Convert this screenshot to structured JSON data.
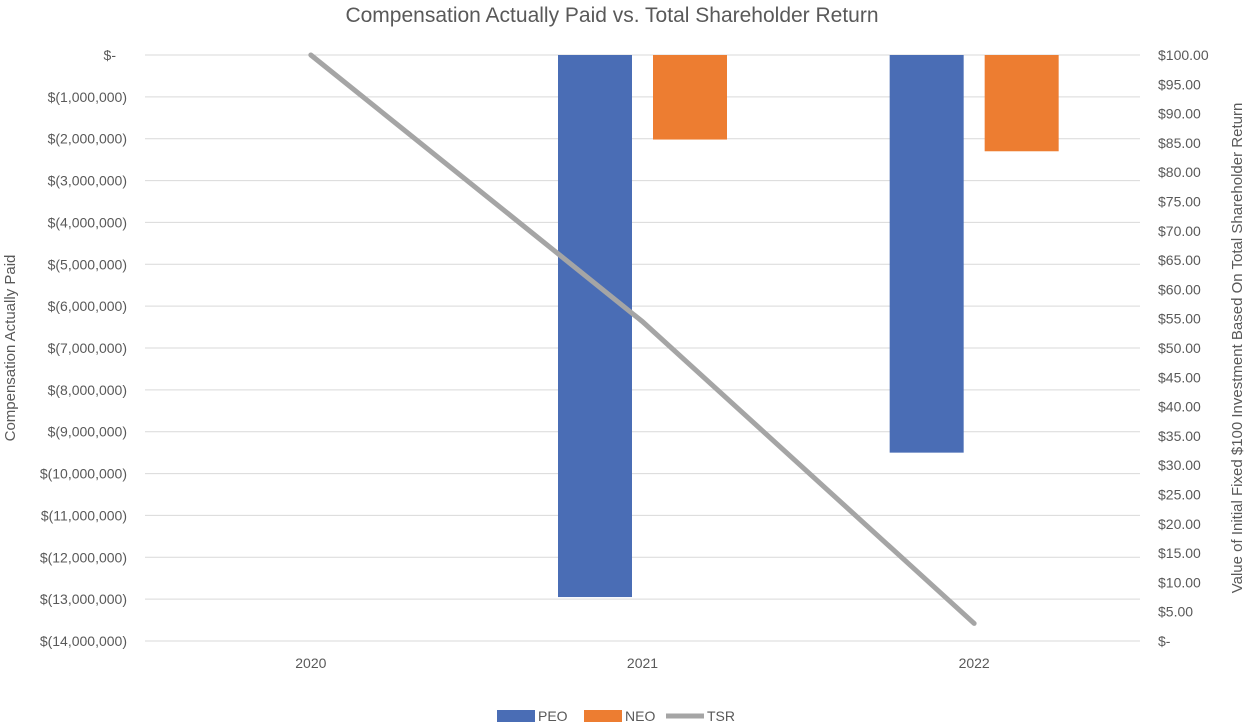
{
  "chart_data": {
    "type": "bar",
    "title": "Compensation Actually Paid vs. Total Shareholder Return",
    "categories": [
      "2020",
      "2021",
      "2022"
    ],
    "ylabel": "Compensation Actually Paid",
    "y2label": "Value of Initial Fixed $100 Investment Based On Total Shareholder Return",
    "ylim": [
      -14000000,
      0
    ],
    "y2lim": [
      0,
      100
    ],
    "y_ticks": [
      {
        "value": 0,
        "label": "$-"
      },
      {
        "value": -1000000,
        "label": "$(1,000,000)"
      },
      {
        "value": -2000000,
        "label": "$(2,000,000)"
      },
      {
        "value": -3000000,
        "label": "$(3,000,000)"
      },
      {
        "value": -4000000,
        "label": "$(4,000,000)"
      },
      {
        "value": -5000000,
        "label": "$(5,000,000)"
      },
      {
        "value": -6000000,
        "label": "$(6,000,000)"
      },
      {
        "value": -7000000,
        "label": "$(7,000,000)"
      },
      {
        "value": -8000000,
        "label": "$(8,000,000)"
      },
      {
        "value": -9000000,
        "label": "$(9,000,000)"
      },
      {
        "value": -10000000,
        "label": "$(10,000,000)"
      },
      {
        "value": -11000000,
        "label": "$(11,000,000)"
      },
      {
        "value": -12000000,
        "label": "$(12,000,000)"
      },
      {
        "value": -13000000,
        "label": "$(13,000,000)"
      },
      {
        "value": -14000000,
        "label": "$(14,000,000)"
      }
    ],
    "y2_ticks": [
      {
        "value": 100,
        "label": "$100.00"
      },
      {
        "value": 95,
        "label": "$95.00"
      },
      {
        "value": 90,
        "label": "$90.00"
      },
      {
        "value": 85,
        "label": "$85.00"
      },
      {
        "value": 80,
        "label": "$80.00"
      },
      {
        "value": 75,
        "label": "$75.00"
      },
      {
        "value": 70,
        "label": "$70.00"
      },
      {
        "value": 65,
        "label": "$65.00"
      },
      {
        "value": 60,
        "label": "$60.00"
      },
      {
        "value": 55,
        "label": "$55.00"
      },
      {
        "value": 50,
        "label": "$50.00"
      },
      {
        "value": 45,
        "label": "$45.00"
      },
      {
        "value": 40,
        "label": "$40.00"
      },
      {
        "value": 35,
        "label": "$35.00"
      },
      {
        "value": 30,
        "label": "$30.00"
      },
      {
        "value": 25,
        "label": "$25.00"
      },
      {
        "value": 20,
        "label": "$20.00"
      },
      {
        "value": 15,
        "label": "$15.00"
      },
      {
        "value": 10,
        "label": "$10.00"
      },
      {
        "value": 5,
        "label": "$5.00"
      },
      {
        "value": 0,
        "label": "$-"
      }
    ],
    "series": [
      {
        "name": "PEO",
        "type": "bar",
        "axis": "left",
        "color": "#4a6db5",
        "values": [
          0,
          -12950000,
          -9500000
        ]
      },
      {
        "name": "NEO",
        "type": "bar",
        "axis": "left",
        "color": "#ed7d31",
        "values": [
          0,
          -2020000,
          -2300000
        ]
      },
      {
        "name": "TSR",
        "type": "line",
        "axis": "right",
        "color": "#a5a5a5",
        "values": [
          100,
          54.5,
          3
        ]
      }
    ],
    "legend": "bottom",
    "grid": true
  }
}
